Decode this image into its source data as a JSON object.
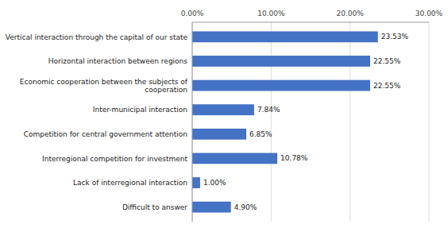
{
  "chart_data": {
    "type": "bar",
    "orientation": "horizontal",
    "categories": [
      "Difficult to answer",
      "Lack of interregional interaction",
      "Interregional competition for investment",
      "Competition for central government attention",
      "Inter-municipal interaction",
      "Economic cooperation between the subjects of\ncooperation",
      "Horizontal interaction between regions",
      "Vertical interaction through the capital of our state"
    ],
    "values": [
      4.9,
      1.0,
      10.78,
      6.85,
      7.84,
      22.55,
      22.55,
      23.53
    ],
    "value_labels": [
      "4.90%",
      "1.00%",
      "10.78%",
      "6.85%",
      "7.84%",
      "22.55%",
      "22.55%",
      "23.53%"
    ],
    "color": "#4472C4",
    "xlim": [
      0,
      30
    ],
    "xticks": [
      {
        "value": 0,
        "label": "0.00%"
      },
      {
        "value": 10,
        "label": "10.00%"
      },
      {
        "value": 20,
        "label": "20.00%"
      },
      {
        "value": 30,
        "label": "30.00%"
      }
    ],
    "grid": true,
    "data_labels": true
  }
}
